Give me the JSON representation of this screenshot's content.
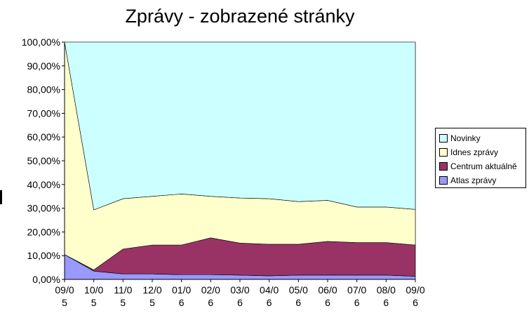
{
  "chart_data": {
    "type": "area",
    "stacked": "percent",
    "title": "Zprávy - zobrazené stránky",
    "categories": [
      [
        "09/0",
        "5"
      ],
      [
        "10/0",
        "5"
      ],
      [
        "11/0",
        "5"
      ],
      [
        "12/0",
        "5"
      ],
      [
        "01/0",
        "6"
      ],
      [
        "02/0",
        "6"
      ],
      [
        "03/0",
        "6"
      ],
      [
        "04/0",
        "6"
      ],
      [
        "05/0",
        "6"
      ],
      [
        "06/0",
        "6"
      ],
      [
        "07/0",
        "6"
      ],
      [
        "08/0",
        "6"
      ],
      [
        "09/0",
        "6"
      ]
    ],
    "y_ticks": [
      "0,00%",
      "10,00%",
      "20,00%",
      "30,00%",
      "40,00%",
      "50,00%",
      "60,00%",
      "70,00%",
      "80,00%",
      "90,00%",
      "100,00%"
    ],
    "ylim": [
      0,
      100
    ],
    "series": [
      {
        "name": "Atlas zprávy",
        "color": "#9999ff",
        "values": [
          10.5,
          3.5,
          2.3,
          2.3,
          2.0,
          2.0,
          1.8,
          1.5,
          1.8,
          1.8,
          1.8,
          1.8,
          1.3
        ]
      },
      {
        "name": "Centrum aktuálně",
        "color": "#993366",
        "values": [
          0.0,
          0.5,
          10.5,
          12.2,
          12.5,
          15.5,
          13.5,
          13.3,
          13.0,
          14.2,
          13.7,
          13.7,
          13.2
        ]
      },
      {
        "name": "Idnes zprávy",
        "color": "#ffffcc",
        "values": [
          89.5,
          25.3,
          21.2,
          20.5,
          21.5,
          17.5,
          19.0,
          19.2,
          18.0,
          17.3,
          15.0,
          15.0,
          15.0
        ]
      },
      {
        "name": "Novinky",
        "color": "#ccffff",
        "values": [
          0.0,
          70.7,
          66.0,
          65.0,
          64.0,
          65.0,
          65.7,
          66.0,
          67.2,
          66.7,
          69.5,
          69.5,
          70.5
        ]
      }
    ],
    "legend_order": [
      "Novinky",
      "Idnes zprávy",
      "Centrum aktuálně",
      "Atlas zprávy"
    ],
    "legend_position": "right",
    "grid": false
  }
}
